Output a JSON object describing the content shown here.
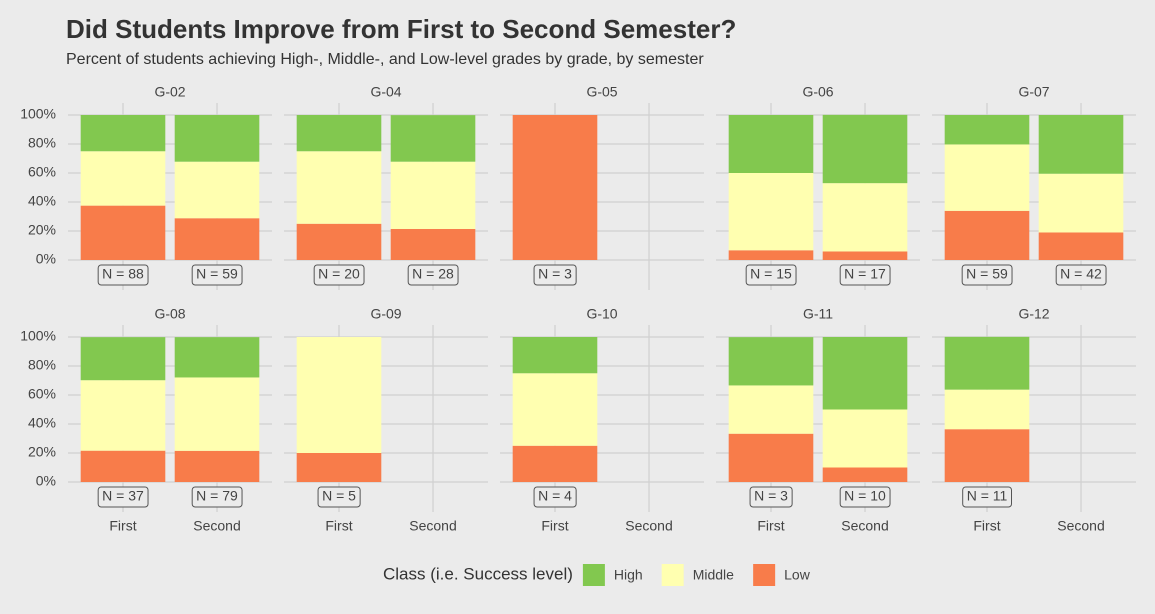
{
  "chart_data": {
    "type": "bar",
    "stacked": true,
    "title": "Did Students Improve from First to Second Semester?",
    "subtitle": "Percent of students achieving High-, Middle-, and Low-level grades by grade, by semester",
    "legend_title": "Class (i.e. Success level)",
    "categories": [
      "First",
      "Second"
    ],
    "ylim": [
      0,
      100
    ],
    "yticks": [
      {
        "value": 0,
        "label": "0%"
      },
      {
        "value": 20,
        "label": "20%"
      },
      {
        "value": 40,
        "label": "40%"
      },
      {
        "value": 60,
        "label": "60%"
      },
      {
        "value": 80,
        "label": "80%"
      },
      {
        "value": 100,
        "label": "100%"
      }
    ],
    "grid": true,
    "series": [
      {
        "name": "High",
        "color": "#82c84f"
      },
      {
        "name": "Middle",
        "color": "#ffffb0"
      },
      {
        "name": "Low",
        "color": "#f87c4a"
      }
    ],
    "facets": [
      {
        "title": "G-02",
        "series": [
          {
            "values": [
              25,
              32.2
            ]
          },
          {
            "values": [
              37.5,
              39
            ]
          },
          {
            "values": [
              37.5,
              28.8
            ]
          }
        ],
        "n_labels": [
          "N = 88",
          "N = 59"
        ]
      },
      {
        "title": "G-04",
        "series": [
          {
            "values": [
              25,
              32.1
            ]
          },
          {
            "values": [
              50,
              46.4
            ]
          },
          {
            "values": [
              25,
              21.4
            ]
          }
        ],
        "n_labels": [
          "N = 20",
          "N = 28"
        ]
      },
      {
        "title": "G-05",
        "series": [
          {
            "values": [
              0,
              null
            ]
          },
          {
            "values": [
              0,
              null
            ]
          },
          {
            "values": [
              100,
              null
            ]
          }
        ],
        "n_labels": [
          "N = 3",
          null
        ]
      },
      {
        "title": "G-06",
        "series": [
          {
            "values": [
              40,
              47.1
            ]
          },
          {
            "values": [
              53.3,
              47.1
            ]
          },
          {
            "values": [
              6.7,
              5.9
            ]
          }
        ],
        "n_labels": [
          "N = 15",
          "N = 17"
        ]
      },
      {
        "title": "G-07",
        "series": [
          {
            "values": [
              20.3,
              40.5
            ]
          },
          {
            "values": [
              45.8,
              40.5
            ]
          },
          {
            "values": [
              33.9,
              19
            ]
          }
        ],
        "n_labels": [
          "N = 59",
          "N = 42"
        ]
      },
      {
        "title": "G-08",
        "series": [
          {
            "values": [
              29.7,
              27.8
            ]
          },
          {
            "values": [
              48.6,
              50.6
            ]
          },
          {
            "values": [
              21.6,
              21.5
            ]
          }
        ],
        "n_labels": [
          "N = 37",
          "N = 79"
        ]
      },
      {
        "title": "G-09",
        "series": [
          {
            "values": [
              0,
              null
            ]
          },
          {
            "values": [
              80,
              null
            ]
          },
          {
            "values": [
              20,
              null
            ]
          }
        ],
        "n_labels": [
          "N = 5",
          null
        ]
      },
      {
        "title": "G-10",
        "series": [
          {
            "values": [
              25,
              null
            ]
          },
          {
            "values": [
              50,
              null
            ]
          },
          {
            "values": [
              25,
              null
            ]
          }
        ],
        "n_labels": [
          "N = 4",
          null
        ]
      },
      {
        "title": "G-11",
        "series": [
          {
            "values": [
              33.3,
              50
            ]
          },
          {
            "values": [
              33.3,
              40
            ]
          },
          {
            "values": [
              33.3,
              10
            ]
          }
        ],
        "n_labels": [
          "N = 3",
          "N = 10"
        ]
      },
      {
        "title": "G-12",
        "series": [
          {
            "values": [
              36.4,
              null
            ]
          },
          {
            "values": [
              27.3,
              null
            ]
          },
          {
            "values": [
              36.4,
              null
            ]
          }
        ],
        "n_labels": [
          "N = 11",
          null
        ]
      }
    ]
  }
}
